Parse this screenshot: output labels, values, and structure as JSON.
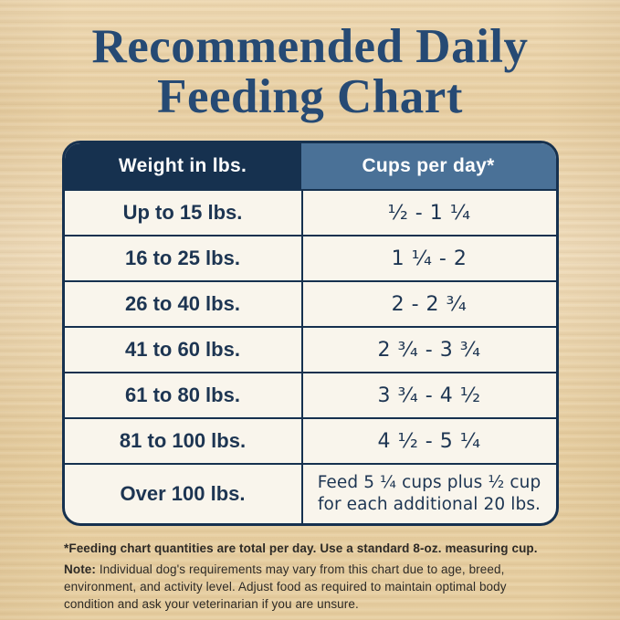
{
  "title": {
    "line1": "Recommended Daily",
    "line2": "Feeding Chart"
  },
  "table": {
    "headers": [
      "Weight in lbs.",
      "Cups per day*"
    ],
    "rows": [
      {
        "weight": "Up to 15 lbs.",
        "cups": "¹⁄₂ - 1 ¹⁄₄"
      },
      {
        "weight": "16 to 25 lbs.",
        "cups": "1 ¹⁄₄ - 2"
      },
      {
        "weight": "26 to 40 lbs.",
        "cups": "2 - 2 ³⁄₄"
      },
      {
        "weight": "41 to 60 lbs.",
        "cups": "2 ³⁄₄ - 3 ³⁄₄"
      },
      {
        "weight": "61 to 80 lbs.",
        "cups": "3 ³⁄₄ - 4 ¹⁄₂"
      },
      {
        "weight": "81 to 100 lbs.",
        "cups": "4 ¹⁄₂ - 5 ¹⁄₄"
      },
      {
        "weight": "Over 100 lbs.",
        "cups": "Feed 5 ¼ cups plus ½ cup\nfor each additional 20 lbs."
      }
    ]
  },
  "footnotes": {
    "asterisk": "*Feeding chart quantities are total per day. Use a standard 8-oz. measuring cup.",
    "note": {
      "label": "Note:",
      "lines": [
        " Individual dog's requirements may vary from this chart due to age, breed,",
        "environment, and activity level. Adjust food as required to maintain optimal body",
        "condition and ask your veterinarian if you are unsure."
      ]
    }
  },
  "colors": {
    "header_left_bg": "#16314f",
    "header_right_bg": "#4a7197",
    "table_border": "#16314f",
    "cell_bg": "#f9f5ec",
    "title_text": "#264a74",
    "cell_text": "#1d3552",
    "footnote_text": "#2d2a26",
    "background_wood": "#ecd7ae"
  },
  "chart_data": {
    "type": "table",
    "title": "Recommended Daily Feeding Chart",
    "columns": [
      "Weight in lbs.",
      "Cups per day*"
    ],
    "rows": [
      [
        "Up to 15 lbs.",
        "1/2 - 1 1/4"
      ],
      [
        "16 to 25 lbs.",
        "1 1/4 - 2"
      ],
      [
        "26 to 40 lbs.",
        "2 - 2 3/4"
      ],
      [
        "41 to 60 lbs.",
        "2 3/4 - 3 3/4"
      ],
      [
        "61 to 80 lbs.",
        "3 3/4 - 4 1/2"
      ],
      [
        "81 to 100 lbs.",
        "4 1/2 - 5 1/4"
      ],
      [
        "Over 100 lbs.",
        "Feed 5 1/4 cups plus 1/2 cup for each additional 20 lbs."
      ]
    ],
    "notes": [
      "*Feeding chart quantities are total per day. Use a standard 8-oz. measuring cup.",
      "Note: Individual dog's requirements may vary from this chart due to age, breed, environment, and activity level. Adjust food as required to maintain optimal body condition and ask your veterinarian if you are unsure."
    ]
  }
}
